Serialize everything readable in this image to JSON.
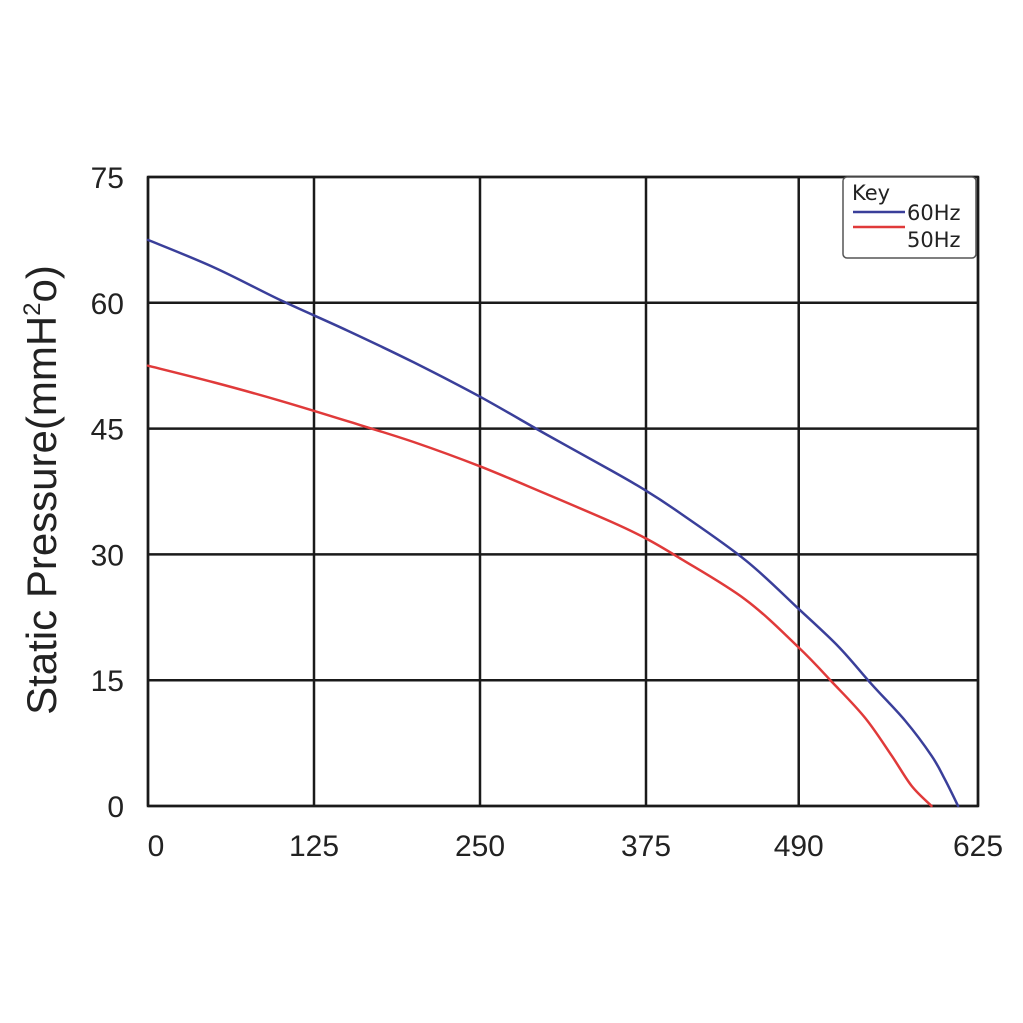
{
  "chart_data": {
    "type": "line",
    "title": "",
    "xlabel": "",
    "ylabel": "Static Pressure(mmH",
    "ylabel_sup": "2",
    "ylabel_tail": "o)",
    "xlim": [
      0,
      625
    ],
    "ylim": [
      0,
      75
    ],
    "x_ticks": [
      0,
      125,
      250,
      375,
      490,
      625
    ],
    "y_ticks": [
      0,
      15,
      30,
      45,
      60,
      75
    ],
    "grid": true,
    "legend": {
      "title": "Key",
      "placement": "top-right"
    },
    "series": [
      {
        "name": "60Hz",
        "color": "#3a3f9a",
        "points": [
          [
            0,
            67.5
          ],
          [
            50,
            64.2
          ],
          [
            100,
            60.3
          ],
          [
            150,
            56.7
          ],
          [
            200,
            52.9
          ],
          [
            250,
            48.8
          ],
          [
            300,
            44.3
          ],
          [
            350,
            39.9
          ],
          [
            375,
            37.6
          ],
          [
            400,
            35.0
          ],
          [
            450,
            29.3
          ],
          [
            490,
            23.5
          ],
          [
            520,
            19.0
          ],
          [
            545,
            14.5
          ],
          [
            570,
            10.2
          ],
          [
            590,
            6.0
          ],
          [
            600,
            3.2
          ],
          [
            610,
            0
          ]
        ]
      },
      {
        "name": "50Hz",
        "color": "#e03a3a",
        "points": [
          [
            0,
            52.5
          ],
          [
            50,
            50.5
          ],
          [
            100,
            48.3
          ],
          [
            150,
            45.9
          ],
          [
            200,
            43.4
          ],
          [
            250,
            40.5
          ],
          [
            300,
            37.2
          ],
          [
            350,
            33.8
          ],
          [
            375,
            31.9
          ],
          [
            400,
            29.6
          ],
          [
            450,
            24.6
          ],
          [
            490,
            18.9
          ],
          [
            515,
            14.8
          ],
          [
            540,
            10.5
          ],
          [
            560,
            6.0
          ],
          [
            575,
            2.4
          ],
          [
            590,
            0
          ]
        ]
      }
    ]
  }
}
